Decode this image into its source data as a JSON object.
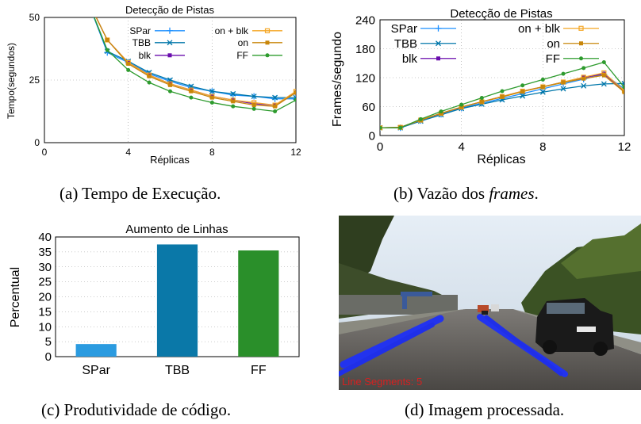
{
  "colors": {
    "SPar": "#1e90ff",
    "TBB": "#0077aa",
    "blk": "#6a0dad",
    "on_blk": "#f5a623",
    "on": "#c8860a",
    "FF": "#2e9b2e",
    "bar_SPar": "#2b9be0",
    "bar_TBB": "#0a78a8",
    "bar_FF": "#2a8f2a"
  },
  "captions": {
    "a": "(a) Tempo de Execução.",
    "b_prefix": "(b) Vazão dos ",
    "b_italic": "frames",
    "b_suffix": ".",
    "c": "(c) Produtividade de código.",
    "d": "(d) Imagem processada."
  },
  "image_d": {
    "overlay_text": "Line Segments: 5"
  },
  "chart_data": [
    {
      "id": "a",
      "type": "line",
      "title": "Detecção de Pistas",
      "xlabel": "Réplicas",
      "ylabel": "Tempo(segundos)",
      "xlim": [
        0,
        12
      ],
      "ylim": [
        0,
        50
      ],
      "xticks": [
        0,
        4,
        8,
        12
      ],
      "yticks": [
        0,
        25,
        50
      ],
      "grid": true,
      "legend": "top-right",
      "series": [
        {
          "name": "SPar",
          "key": "SPar",
          "x": [
            2,
            3,
            4,
            5,
            6,
            7,
            8,
            9,
            10,
            11,
            12
          ],
          "y": [
            58,
            36,
            32,
            27.5,
            24.5,
            22,
            20.5,
            19,
            18.5,
            17.5,
            17.5
          ]
        },
        {
          "name": "TBB",
          "key": "TBB",
          "x": [
            2,
            3,
            4,
            5,
            6,
            7,
            8,
            9,
            10,
            11,
            12
          ],
          "y": [
            58,
            36.5,
            32.5,
            28,
            25,
            22.5,
            20.5,
            19.5,
            18.5,
            18,
            18
          ]
        },
        {
          "name": "blk",
          "key": "blk",
          "x": [
            2,
            3,
            4,
            5,
            6,
            7,
            8,
            9,
            10,
            11,
            12
          ],
          "y": [
            58,
            41,
            32,
            27,
            23.5,
            21,
            18.5,
            17,
            15.5,
            15,
            20
          ]
        },
        {
          "name": "on + blk",
          "key": "on_blk",
          "x": [
            2,
            3,
            4,
            5,
            6,
            7,
            8,
            9,
            10,
            11,
            12
          ],
          "y": [
            58,
            41,
            32,
            27,
            23.5,
            21,
            18.5,
            17,
            16,
            15,
            20.5
          ]
        },
        {
          "name": "on",
          "key": "on",
          "x": [
            2,
            3,
            4,
            5,
            6,
            7,
            8,
            9,
            10,
            11,
            12
          ],
          "y": [
            58,
            41,
            31.5,
            26.5,
            23,
            20.5,
            18,
            16.5,
            15,
            14.5,
            20
          ]
        },
        {
          "name": "FF",
          "key": "FF",
          "x": [
            2,
            3,
            4,
            5,
            6,
            7,
            8,
            9,
            10,
            11,
            12
          ],
          "y": [
            58,
            37,
            29,
            24,
            20.5,
            18,
            16,
            14.5,
            13.5,
            12.5,
            17
          ]
        }
      ]
    },
    {
      "id": "b",
      "type": "line",
      "title": "Detecção de Pistas",
      "xlabel": "Réplicas",
      "ylabel": "Frames/segundo",
      "xlim": [
        0,
        12
      ],
      "ylim": [
        0,
        240
      ],
      "xticks": [
        0,
        4,
        8,
        12
      ],
      "yticks": [
        0,
        60,
        120,
        180,
        240
      ],
      "grid": true,
      "legend": "top",
      "series": [
        {
          "name": "SPar",
          "key": "SPar",
          "x": [
            0,
            1,
            2,
            3,
            4,
            5,
            6,
            7,
            8,
            9,
            10,
            11,
            12
          ],
          "y": [
            16,
            16,
            31,
            44,
            57,
            67,
            77,
            87,
            97,
            107,
            117,
            127,
            97
          ]
        },
        {
          "name": "TBB",
          "key": "TBB",
          "x": [
            0,
            1,
            2,
            3,
            4,
            5,
            6,
            7,
            8,
            9,
            10,
            11,
            12
          ],
          "y": [
            16,
            16,
            30,
            43,
            56,
            65,
            74,
            82,
            90,
            97,
            103,
            107,
            108
          ]
        },
        {
          "name": "blk",
          "key": "blk",
          "x": [
            0,
            1,
            2,
            3,
            4,
            5,
            6,
            7,
            8,
            9,
            10,
            11,
            12
          ],
          "y": [
            16,
            17,
            32,
            46,
            59,
            70,
            81,
            92,
            101,
            111,
            120,
            128,
            92
          ]
        },
        {
          "name": "on + blk",
          "key": "on_blk",
          "x": [
            0,
            1,
            2,
            3,
            4,
            5,
            6,
            7,
            8,
            9,
            10,
            11,
            12
          ],
          "y": [
            16,
            17,
            32,
            46,
            59,
            70,
            81,
            92,
            101,
            111,
            121,
            130,
            93
          ]
        },
        {
          "name": "on",
          "key": "on",
          "x": [
            0,
            1,
            2,
            3,
            4,
            5,
            6,
            7,
            8,
            9,
            10,
            11,
            12
          ],
          "y": [
            16,
            17,
            32,
            46,
            59,
            70,
            80,
            91,
            101,
            110,
            118,
            125,
            90
          ]
        },
        {
          "name": "FF",
          "key": "FF",
          "x": [
            0,
            1,
            2,
            3,
            4,
            5,
            6,
            7,
            8,
            9,
            10,
            11,
            12
          ],
          "y": [
            16,
            16,
            34,
            50,
            64,
            78,
            92,
            104,
            116,
            128,
            140,
            152,
            100
          ]
        }
      ]
    },
    {
      "id": "c",
      "type": "bar",
      "title": "Aumento de Linhas",
      "xlabel": "",
      "ylabel": "Percentual",
      "categories": [
        "SPar",
        "TBB",
        "FF"
      ],
      "values": [
        4.2,
        37.5,
        35.5
      ],
      "bar_colors": [
        "bar_SPar",
        "bar_TBB",
        "bar_FF"
      ],
      "ylim": [
        0,
        40
      ],
      "yticks": [
        0,
        5,
        10,
        15,
        20,
        25,
        30,
        35,
        40
      ],
      "grid": true
    }
  ]
}
